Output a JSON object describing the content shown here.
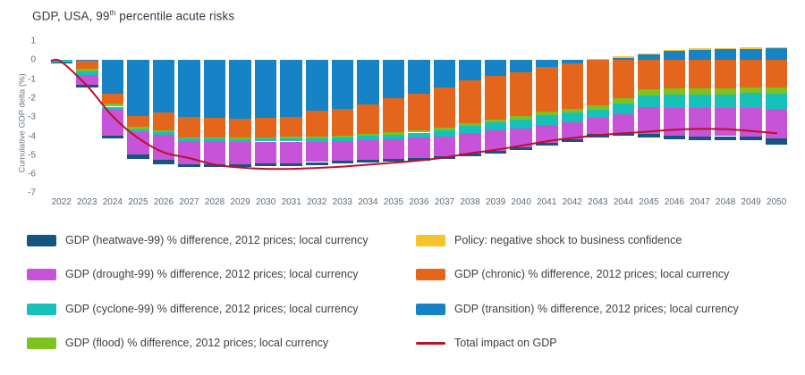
{
  "title": {
    "prefix": "GDP, USA, 99",
    "sup": "th",
    "suffix": " percentile acute risks"
  },
  "chart_data": {
    "type": "bar",
    "stacked": true,
    "title": "GDP, USA, 99th percentile acute risks",
    "xlabel": "",
    "ylabel": "Cumulative GDP delta (%)",
    "ylim": [
      -7,
      1
    ],
    "yticks": [
      1,
      0,
      -1,
      -2,
      -3,
      -4,
      -5,
      -6,
      -7
    ],
    "grid": false,
    "legend_position": "bottom",
    "categories": [
      "2022",
      "2023",
      "2024",
      "2025",
      "2026",
      "2027",
      "2028",
      "2029",
      "2030",
      "2031",
      "2032",
      "2033",
      "2034",
      "2035",
      "2036",
      "2037",
      "2038",
      "2039",
      "2040",
      "2041",
      "2042",
      "2043",
      "2044",
      "2045",
      "2046",
      "2047",
      "2048",
      "2049",
      "2050"
    ],
    "series": [
      {
        "key": "transition",
        "name": "GDP (transition) % difference, 2012 prices; local currency",
        "color": "#1583c6",
        "values": [
          0,
          -0.05,
          -1.75,
          -2.95,
          -2.75,
          -3.0,
          -3.05,
          -3.1,
          -3.05,
          -2.98,
          -2.65,
          -2.55,
          -2.32,
          -2.0,
          -1.77,
          -1.46,
          -1.07,
          -0.83,
          -0.64,
          -0.36,
          -0.17,
          0.02,
          0.13,
          0.28,
          0.48,
          0.54,
          0.56,
          0.59,
          0.62
        ]
      },
      {
        "key": "policy",
        "name": "Policy: negative shock to business confidence",
        "color": "#f9c32b",
        "values": [
          0,
          0,
          0,
          0,
          0,
          0,
          0,
          0,
          0,
          0,
          0,
          0,
          0,
          0,
          0,
          0,
          0,
          0,
          0,
          0,
          0,
          0.05,
          0.06,
          0.06,
          0.07,
          0.07,
          0.07,
          0.07,
          0.07
        ]
      },
      {
        "key": "chronic",
        "name": "GDP (chronic) % difference, 2012 prices; local currency",
        "color": "#e4661c",
        "values": [
          0,
          -0.4,
          -0.55,
          -0.55,
          -0.95,
          -1.05,
          -1.0,
          -0.98,
          -1.0,
          -1.05,
          -1.38,
          -1.41,
          -1.56,
          -1.8,
          -1.91,
          -2.11,
          -2.25,
          -2.3,
          -2.32,
          -2.35,
          -2.38,
          -2.4,
          -2.0,
          -1.55,
          -1.5,
          -1.48,
          -1.47,
          -1.45,
          -1.45
        ]
      },
      {
        "key": "flood",
        "name": "GDP (flood) % difference, 2012 prices; local currency",
        "color": "#7dc21f",
        "values": [
          0,
          -0.14,
          -0.15,
          -0.13,
          -0.1,
          -0.08,
          -0.08,
          -0.08,
          -0.08,
          -0.09,
          -0.1,
          -0.1,
          -0.11,
          -0.12,
          -0.13,
          -0.14,
          -0.15,
          -0.16,
          -0.17,
          -0.18,
          -0.19,
          -0.2,
          -0.28,
          -0.3,
          -0.33,
          -0.34,
          -0.35,
          -0.28,
          -0.3
        ]
      },
      {
        "key": "cyclone",
        "name": "GDP (cyclone-99) % difference, 2012 prices; local currency",
        "color": "#17c0b9",
        "values": [
          -0.12,
          -0.18,
          -0.16,
          -0.15,
          -0.13,
          -0.13,
          -0.14,
          -0.14,
          -0.15,
          -0.16,
          -0.18,
          -0.2,
          -0.22,
          -0.25,
          -0.28,
          -0.32,
          -0.36,
          -0.4,
          -0.45,
          -0.5,
          -0.55,
          -0.45,
          -0.55,
          -0.62,
          -0.67,
          -0.7,
          -0.72,
          -0.8,
          -0.82
        ]
      },
      {
        "key": "drought",
        "name": "GDP (drought-99) % difference, 2012 prices; local currency",
        "color": "#c653d8",
        "values": [
          0,
          -0.55,
          -1.35,
          -1.2,
          -1.3,
          -1.2,
          -1.22,
          -1.16,
          -1.16,
          -1.13,
          -1.05,
          -1.05,
          -1.05,
          -1.04,
          -1.05,
          -1.03,
          -1.08,
          -1.07,
          -1.0,
          -0.95,
          -0.87,
          -0.85,
          -1.0,
          -1.42,
          -1.48,
          -1.48,
          -1.46,
          -1.48,
          -1.56
        ]
      },
      {
        "key": "heatwave",
        "name": "GDP (heatwave-99) % difference, 2012 prices; local currency",
        "color": "#14567e",
        "values": [
          -0.04,
          -0.12,
          -0.16,
          -0.2,
          -0.24,
          -0.16,
          -0.14,
          -0.14,
          -0.14,
          -0.14,
          -0.14,
          -0.14,
          -0.14,
          -0.14,
          -0.14,
          -0.14,
          -0.14,
          -0.14,
          -0.14,
          -0.14,
          -0.14,
          -0.15,
          -0.15,
          -0.18,
          -0.2,
          -0.2,
          -0.2,
          -0.22,
          -0.32
        ]
      }
    ],
    "line_series": {
      "key": "total",
      "name": "Total impact on GDP",
      "color": "#bb1126",
      "values": [
        -0.1,
        -1.35,
        -2.95,
        -4.1,
        -4.85,
        -5.15,
        -5.5,
        -5.65,
        -5.72,
        -5.72,
        -5.67,
        -5.6,
        -5.5,
        -5.4,
        -5.28,
        -5.12,
        -4.9,
        -4.72,
        -4.5,
        -4.27,
        -4.1,
        -3.95,
        -3.85,
        -3.76,
        -3.66,
        -3.62,
        -3.63,
        -3.73,
        -3.85
      ]
    }
  },
  "legend": {
    "columns": [
      [
        {
          "key": "heatwave",
          "type": "box",
          "color": "#14567e",
          "label": "GDP (heatwave-99) % difference, 2012 prices; local currency"
        },
        {
          "key": "drought",
          "type": "box",
          "color": "#c653d8",
          "label": "GDP (drought-99) % difference, 2012 prices; local currency"
        },
        {
          "key": "cyclone",
          "type": "box",
          "color": "#17c0b9",
          "label": "GDP (cyclone-99) % difference, 2012 prices; local currency"
        },
        {
          "key": "flood",
          "type": "box",
          "color": "#7dc21f",
          "label": "GDP (flood) % difference, 2012 prices; local currency"
        }
      ],
      [
        {
          "key": "policy",
          "type": "box",
          "color": "#f9c32b",
          "label": "Policy: negative shock to business confidence"
        },
        {
          "key": "chronic",
          "type": "box",
          "color": "#e4661c",
          "label": "GDP (chronic) % difference, 2012 prices; local currency"
        },
        {
          "key": "transition",
          "type": "box",
          "color": "#1583c6",
          "label": "GDP (transition) % difference, 2012 prices; local currency"
        },
        {
          "key": "total",
          "type": "line",
          "color": "#bb1126",
          "label": "Total impact on GDP"
        }
      ]
    ]
  }
}
